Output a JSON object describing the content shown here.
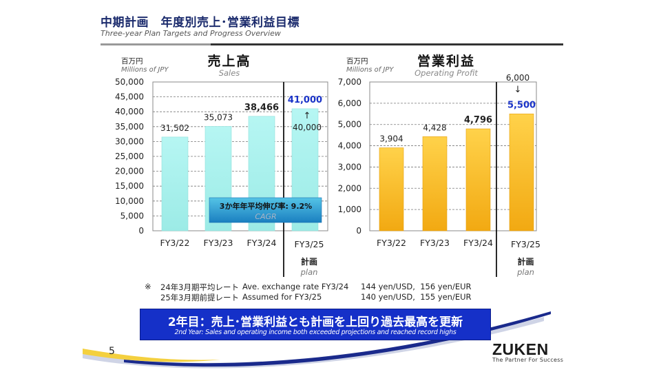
{
  "header": {
    "title": "中期計画　年度別売上･営業利益目標",
    "subtitle": "Three-year Plan Targets and Progress Overview"
  },
  "chart_data": [
    {
      "type": "bar",
      "title": "売上高",
      "title_en": "Sales",
      "unit_label": "百万円",
      "unit_label_en": "Millions of JPY",
      "categories": [
        "FY3/22",
        "FY3/23",
        "FY3/24",
        "FY3/25"
      ],
      "values": [
        31502,
        35073,
        38466,
        41000
      ],
      "value_labels": [
        "31,502",
        "35,073",
        "38,466",
        "41,000"
      ],
      "ylim": [
        0,
        50000
      ],
      "yticks": [
        "0",
        "5,000",
        "10,000",
        "15,000",
        "20,000",
        "25,000",
        "30,000",
        "35,000",
        "40,000",
        "45,000",
        "50,000"
      ],
      "ytick_values": [
        0,
        5000,
        10000,
        15000,
        20000,
        25000,
        30000,
        35000,
        40000,
        45000,
        50000
      ],
      "grid": true,
      "color": "#a8f2ee",
      "previous_plan": "40,000",
      "arrow": "↑",
      "plan_label": "計画",
      "plan_label_en": "plan",
      "cagr_label": "3か年年平均伸び率: 9.2%",
      "cagr_label_en": "CAGR"
    },
    {
      "type": "bar",
      "title": "営業利益",
      "title_en": "Operating Profit",
      "unit_label": "百万円",
      "unit_label_en": "Millions of JPY",
      "categories": [
        "FY3/22",
        "FY3/23",
        "FY3/24",
        "FY3/25"
      ],
      "values": [
        3904,
        4428,
        4796,
        5500
      ],
      "value_labels": [
        "3,904",
        "4,428",
        "4,796",
        "5,500"
      ],
      "ylim": [
        0,
        7000
      ],
      "yticks": [
        "0",
        "1,000",
        "2,000",
        "3,000",
        "4,000",
        "5,000",
        "6,000",
        "7,000"
      ],
      "ytick_values": [
        0,
        1000,
        2000,
        3000,
        4000,
        5000,
        6000,
        7000
      ],
      "grid": true,
      "color": "#f7b91c",
      "previous_plan": "6,000",
      "arrow": "↓",
      "plan_label": "計画",
      "plan_label_en": "plan"
    }
  ],
  "notes": {
    "mark": "※",
    "line1_label": "24年3月期平均レート",
    "line1_en": "Ave. exchange rate FY3/24",
    "line1_rate": "144 yen/USD,  156 yen/EUR",
    "line2_label": "25年3月期前提レート",
    "line2_en": "Assumed for FY3/25",
    "line2_rate": "140 yen/USD,  155 yen/EUR"
  },
  "banner": {
    "main": "2年目：売上･営業利益とも計画を上回り過去最高を更新",
    "sub": "2nd Year: Sales and operating income both exceeded projections and reached record highs"
  },
  "footer": {
    "page_number": "5",
    "logo": "ZUKEN",
    "tagline": "The Partner For Success"
  }
}
